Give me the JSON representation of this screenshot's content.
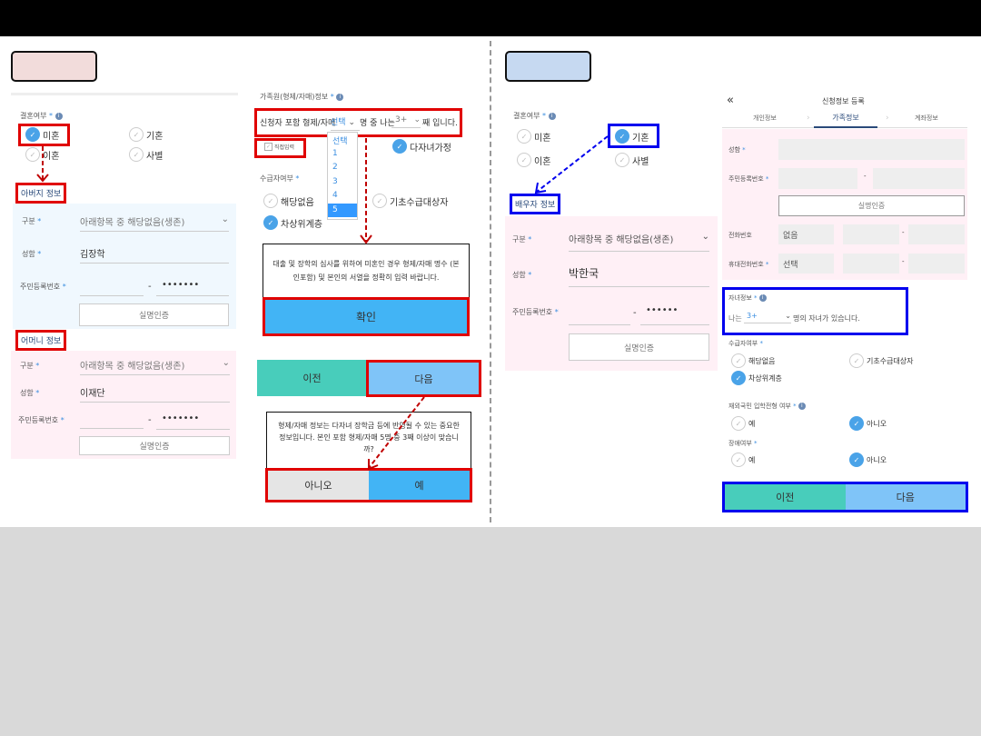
{
  "colors": {
    "pink_tag": "#f2dcdb",
    "blue_tag": "#c6d9f1",
    "teal": "#48cdbb",
    "light_blue": "#7fc4f8",
    "blue": "#42b4f5",
    "highlight_red": "#e00000",
    "highlight_blue": "#0000ee"
  },
  "left": {
    "marriage_label": "결혼여부",
    "req": "*",
    "marriage_options": [
      "미혼",
      "기혼",
      "이혼",
      "사별"
    ],
    "marriage_selected": "미혼",
    "father": {
      "title": "아버지 정보",
      "type_label": "구분",
      "type_value": "아래항목 중 해당없음(생존)",
      "name_label": "성함",
      "name_value": "김장학",
      "rrn_label": "주민등록번호",
      "rrn_back": "•••••••",
      "verify": "실명인증"
    },
    "mother": {
      "title": "어머니 정보",
      "type_label": "구분",
      "type_value": "아래항목 중 해당없음(생존)",
      "name_label": "성함",
      "name_value": "이재단",
      "rrn_label": "주민등록번호",
      "rrn_back": "•••••••",
      "verify": "실명인증"
    }
  },
  "middle": {
    "family_label": "가족원(형제/자매)정보",
    "sentence_prefix": "신청자 포함 형제/자매",
    "count_select": "선택",
    "sentence_mid": "명 중 나는",
    "order_select": "3+",
    "sentence_suffix": "째 입니다.",
    "dropdown_options": [
      "선택",
      "1",
      "2",
      "3",
      "4",
      "5"
    ],
    "dropdown_highlighted": "5",
    "direct_input": "직접입력",
    "multi_child": "다자녀가정",
    "recipient_label": "수급자여부",
    "recipient_options": [
      "해당없음",
      "기초수급대상자",
      "차상위계층"
    ],
    "recipient_selected": "차상위계층",
    "dialog1_text": "대출 및 장학의 심사를 위하여 미혼인 경우 형제/자매 명수 (본인포함) 및 본인의 서열을 정확히 입력 바랍니다.",
    "dialog1_confirm": "확인",
    "prev": "이전",
    "next": "다음",
    "dialog2_text": "형제/자매 정보는 다자녀 장학금 등에 반영될 수 있는 중요한 정보입니다. 본인 포함 형제/자매 5명 중 3째 이상이 맞습니까?",
    "dialog2_no": "아니오",
    "dialog2_yes": "예"
  },
  "right_a": {
    "marriage_label": "결혼여부",
    "marriage_options": [
      "미혼",
      "기혼",
      "이혼",
      "사별"
    ],
    "marriage_selected": "기혼",
    "spouse": {
      "title": "배우자 정보",
      "type_label": "구분",
      "type_value": "아래항목 중 해당없음(생존)",
      "name_label": "성함",
      "name_value": "박한국",
      "rrn_label": "주민등록번호",
      "rrn_back": "••••••",
      "verify": "실명인증"
    }
  },
  "right_b": {
    "back_icon": "double-chevron-left",
    "title": "신청정보 등록",
    "tabs": [
      "개인정보",
      "가족정보",
      "계좌정보"
    ],
    "active_tab": "가족정보",
    "name_label": "성함",
    "rrn_label": "주민등록번호",
    "verify": "실명인증",
    "phone_label": "전화번호",
    "phone_value": "없음",
    "mobile_label": "휴대전화번호",
    "mobile_value": "선택",
    "children_label": "자녀정보",
    "children_prefix": "나는",
    "children_value": "3+",
    "children_suffix": "명의 자녀가 있습니다.",
    "recipient_label": "수급자여부",
    "recipient_options": [
      "해당없음",
      "기초수급대상자",
      "차상위계층"
    ],
    "recipient_selected": "차상위계층",
    "overseas_label": "재외국민 입학전형 여부",
    "overseas_options": [
      "예",
      "아니오"
    ],
    "overseas_selected": "아니오",
    "disability_label": "장애여부",
    "disability_options": [
      "예",
      "아니오"
    ],
    "disability_selected": "아니오",
    "prev": "이전",
    "next": "다음"
  }
}
